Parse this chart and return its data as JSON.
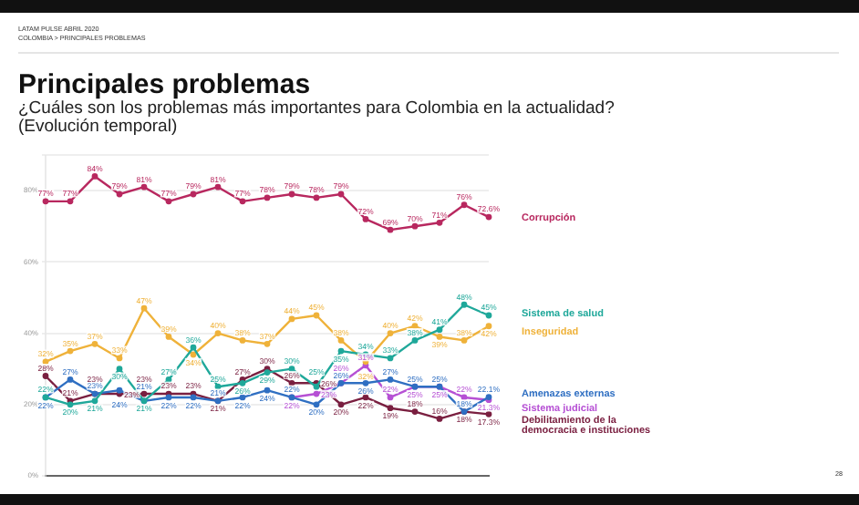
{
  "chart_data": {
    "type": "line",
    "title": "Principales problemas",
    "subtitle": "¿Cuáles son los problemas más importantes para Colombia en la actualidad?\n(Evolución temporal)",
    "annotations": [
      "LATAM PULSE ABRIL 2020",
      "COLOMBIA > PRINCIPALES PROBLEMAS",
      "28"
    ],
    "categories": [
      null,
      null,
      null,
      null,
      null,
      null,
      null,
      null,
      null,
      null,
      null,
      null,
      null,
      null,
      null,
      null,
      null,
      null,
      null
    ],
    "ylim": [
      0,
      90
    ],
    "yticks": [
      {
        "value": 0,
        "label": "0%"
      },
      {
        "value": 20,
        "label": "20%"
      },
      {
        "value": 40,
        "label": "40%"
      },
      {
        "value": 60,
        "label": "60%"
      },
      {
        "value": 80,
        "label": "80%"
      },
      {
        "value": 90,
        "label": null
      }
    ],
    "grid": "y",
    "marker": "circle",
    "line_style": "solid",
    "legend": false,
    "series": [
      {
        "name": "Corrupción",
        "color": "#b8285f",
        "values": [
          77,
          77,
          84,
          79,
          81,
          77,
          79,
          81,
          77,
          78,
          79,
          78,
          79,
          72,
          69,
          70,
          71,
          76,
          72.6
        ],
        "value_labels": [
          "77%",
          "77%",
          "84%",
          "79%",
          "81%",
          "77%",
          "79%",
          "81%",
          "77%",
          "78%",
          "79%",
          "78%",
          "79%",
          "72%",
          "69%",
          "70%",
          "71%",
          "76%",
          "72.6%"
        ]
      },
      {
        "name": "Sistema de salud",
        "color": "#1fa89a",
        "values": [
          22,
          20,
          21,
          30,
          21,
          27,
          36,
          25,
          26,
          29,
          30,
          25,
          35,
          34,
          33,
          38,
          41,
          48,
          45
        ],
        "value_labels": [
          "22%",
          "20%",
          "21%",
          "30%",
          "21%",
          "27%",
          "36%",
          "25%",
          "26%",
          "29%",
          "30%",
          "25%",
          "35%",
          "34%",
          "33%",
          "38%",
          "41%",
          "48%",
          "45%"
        ]
      },
      {
        "name": "Inseguridad",
        "color": "#efb23a",
        "values": [
          32,
          35,
          37,
          33,
          47,
          39,
          34,
          40,
          38,
          37,
          44,
          45,
          38,
          32,
          40,
          42,
          39,
          38,
          42
        ],
        "value_labels": [
          "32%",
          "35%",
          "37%",
          "33%",
          "47%",
          "39%",
          "34%",
          "40%",
          "38%",
          "37%",
          "44%",
          "45%",
          "38%",
          "32%",
          "40%",
          "42%",
          "39%",
          "38%",
          "42%"
        ]
      },
      {
        "name": "Amenazas externas",
        "color": "#2f6fc2",
        "values": [
          22,
          27,
          23,
          24,
          21,
          22,
          22,
          21,
          22,
          24,
          22,
          20,
          26,
          26,
          27,
          25,
          25,
          18,
          22.1
        ],
        "value_labels": [
          "22%",
          "27%",
          "23%",
          "24%",
          "21%",
          "22%",
          "22%",
          "21%",
          "22%",
          "24%",
          "22%",
          "20%",
          "26%",
          "26%",
          "27%",
          "25%",
          "25%",
          "18%",
          "22.1%"
        ]
      },
      {
        "name": "Sistema judicial",
        "color": "#b650d4",
        "values": [
          null,
          null,
          null,
          null,
          null,
          null,
          null,
          null,
          null,
          null,
          22,
          23,
          26,
          31,
          22,
          25,
          25,
          22,
          21.3
        ],
        "value_labels": [
          null,
          null,
          null,
          null,
          null,
          null,
          null,
          null,
          null,
          null,
          "22%",
          "23%",
          "26%",
          "31%",
          "22%",
          "25%",
          "25%",
          "22%",
          "21.3%"
        ]
      },
      {
        "name": "Debilitamiento de la democracia e instituciones",
        "color": "#7a1f40",
        "values": [
          28,
          21,
          23,
          23,
          23,
          23,
          23,
          21,
          27,
          30,
          26,
          26,
          20,
          22,
          19,
          18,
          16,
          18,
          17.3
        ],
        "value_labels": [
          "28%",
          "21%",
          "23%",
          "23%",
          "23%",
          "23%",
          "23%",
          "21%",
          "27%",
          "30%",
          "26%",
          "26%",
          "20%",
          "22%",
          "19%",
          "18%",
          "16%",
          "18%",
          "17.3%"
        ]
      }
    ]
  }
}
